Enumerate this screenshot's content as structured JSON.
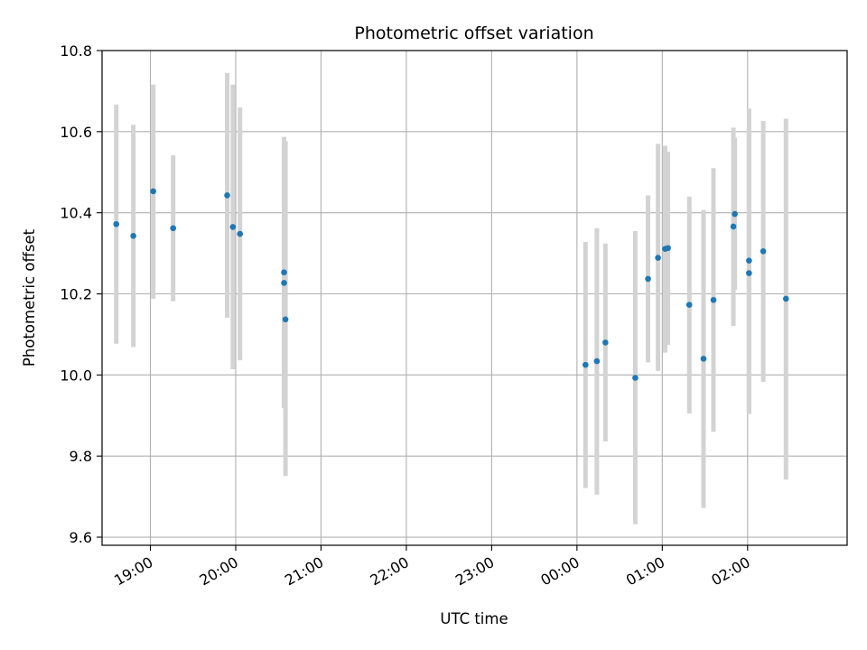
{
  "chart_data": {
    "type": "scatter",
    "title": "Photometric offset variation",
    "xlabel": "UTC time",
    "ylabel": "Photometric offset",
    "x_unit": "UTC time (HH:MM), spanning midnight",
    "xlim": [
      "18:26",
      "03:10"
    ],
    "ylim": [
      9.58,
      10.8
    ],
    "xticks": [
      "19:00",
      "20:00",
      "21:00",
      "22:00",
      "23:00",
      "00:00",
      "01:00",
      "02:00"
    ],
    "yticks": [
      "9.6",
      "9.8",
      "10.0",
      "10.2",
      "10.4",
      "10.6",
      "10.8"
    ],
    "grid": true,
    "colors": {
      "point": "#1f77b4",
      "errorbar": "#d3d3d3",
      "grid": "#b0b0b0"
    },
    "points": [
      {
        "x": "18:36",
        "y": 10.372,
        "lo": 10.077,
        "hi": 10.667
      },
      {
        "x": "18:48",
        "y": 10.343,
        "lo": 10.069,
        "hi": 10.617
      },
      {
        "x": "19:02",
        "y": 10.453,
        "lo": 10.188,
        "hi": 10.716
      },
      {
        "x": "19:16",
        "y": 10.362,
        "lo": 10.182,
        "hi": 10.542
      },
      {
        "x": "19:54",
        "y": 10.443,
        "lo": 10.141,
        "hi": 10.745
      },
      {
        "x": "19:58",
        "y": 10.365,
        "lo": 10.014,
        "hi": 10.716
      },
      {
        "x": "20:03",
        "y": 10.348,
        "lo": 10.036,
        "hi": 10.66
      },
      {
        "x": "20:34",
        "y": 10.253,
        "lo": 9.918,
        "hi": 10.587
      },
      {
        "x": "20:34",
        "y": 10.227,
        "lo": 9.933,
        "hi": 10.52
      },
      {
        "x": "20:35",
        "y": 10.137,
        "lo": 9.751,
        "hi": 10.576
      },
      {
        "x": "00:06",
        "y": 10.025,
        "lo": 9.721,
        "hi": 10.328
      },
      {
        "x": "00:14",
        "y": 10.034,
        "lo": 9.705,
        "hi": 10.362
      },
      {
        "x": "00:20",
        "y": 10.08,
        "lo": 9.836,
        "hi": 10.324
      },
      {
        "x": "00:41",
        "y": 9.993,
        "lo": 9.632,
        "hi": 10.355
      },
      {
        "x": "00:50",
        "y": 10.237,
        "lo": 10.031,
        "hi": 10.443
      },
      {
        "x": "00:57",
        "y": 10.289,
        "lo": 10.01,
        "hi": 10.57
      },
      {
        "x": "01:02",
        "y": 10.311,
        "lo": 10.055,
        "hi": 10.565
      },
      {
        "x": "01:04",
        "y": 10.313,
        "lo": 10.074,
        "hi": 10.551
      },
      {
        "x": "01:19",
        "y": 10.173,
        "lo": 9.905,
        "hi": 10.44
      },
      {
        "x": "01:29",
        "y": 10.04,
        "lo": 9.672,
        "hi": 10.407
      },
      {
        "x": "01:36",
        "y": 10.185,
        "lo": 9.86,
        "hi": 10.51
      },
      {
        "x": "01:50",
        "y": 10.366,
        "lo": 10.121,
        "hi": 10.61
      },
      {
        "x": "01:51",
        "y": 10.397,
        "lo": 10.21,
        "hi": 10.585
      },
      {
        "x": "02:01",
        "y": 10.282,
        "lo": 9.904,
        "hi": 10.657
      },
      {
        "x": "02:01",
        "y": 10.251,
        "lo": 9.904,
        "hi": 10.598
      },
      {
        "x": "02:11",
        "y": 10.305,
        "lo": 9.983,
        "hi": 10.626
      },
      {
        "x": "02:27",
        "y": 10.188,
        "lo": 9.742,
        "hi": 10.632
      }
    ]
  }
}
